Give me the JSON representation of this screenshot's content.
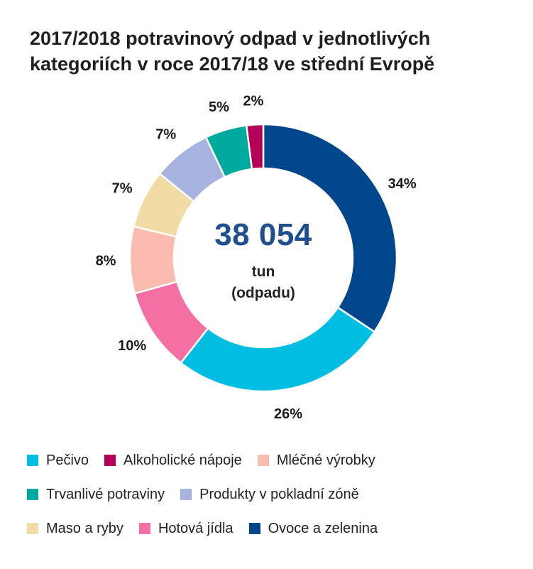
{
  "title": {
    "line1": "2017/2018 potravinový odpad v jednotlivých",
    "line2": "kategoriích v roce 2017/18 ve střední Evropě"
  },
  "center": {
    "value": "38 054",
    "unit_line1": "tun",
    "unit_line2": "(odpadu)"
  },
  "legend_rows": [
    [
      {
        "label": "Pečivo",
        "color": "#00bde3"
      },
      {
        "label": "Alkoholické nápoje",
        "color": "#b5005a"
      },
      {
        "label": "Mléčné výrobky",
        "color": "#fbbcb0"
      }
    ],
    [
      {
        "label": "Trvanlivé potraviny",
        "color": "#00a99d"
      },
      {
        "label": "Produkty v pokladní zóně",
        "color": "#a8b2df"
      }
    ],
    [
      {
        "label": "Maso a ryby",
        "color": "#f0dca4"
      },
      {
        "label": "Hotová jídla",
        "color": "#f46fa3"
      },
      {
        "label": "Ovoce a zelenina",
        "color": "#00468c"
      }
    ]
  ],
  "chart_data": {
    "type": "pie",
    "title": "2017/2018 potravinový odpad v jednotlivých kategoriích v roce 2017/18 ve střední Evropě",
    "total": "38 054",
    "slices": [
      {
        "label": "Ovoce a zelenina",
        "value": 34,
        "display": "34%",
        "color": "#00468c"
      },
      {
        "label": "Pečivo",
        "value": 26,
        "display": "26%",
        "color": "#00bde3"
      },
      {
        "label": "Hotová jídla",
        "value": 10,
        "display": "10%",
        "color": "#f46fa3"
      },
      {
        "label": "Mléčné výrobky",
        "value": 8,
        "display": "8%",
        "color": "#fbbcb0"
      },
      {
        "label": "Maso a ryby",
        "value": 7,
        "display": "7%",
        "color": "#f0dca4"
      },
      {
        "label": "Produkty v pokladní zóně",
        "value": 7,
        "display": "7%",
        "color": "#a8b2df"
      },
      {
        "label": "Trvanlivé potraviny",
        "value": 5,
        "display": "5%",
        "color": "#00a99d"
      },
      {
        "label": "Alkoholické nápoje",
        "value": 2,
        "display": "2%",
        "color": "#b5005a"
      }
    ],
    "legend_position": "bottom"
  }
}
